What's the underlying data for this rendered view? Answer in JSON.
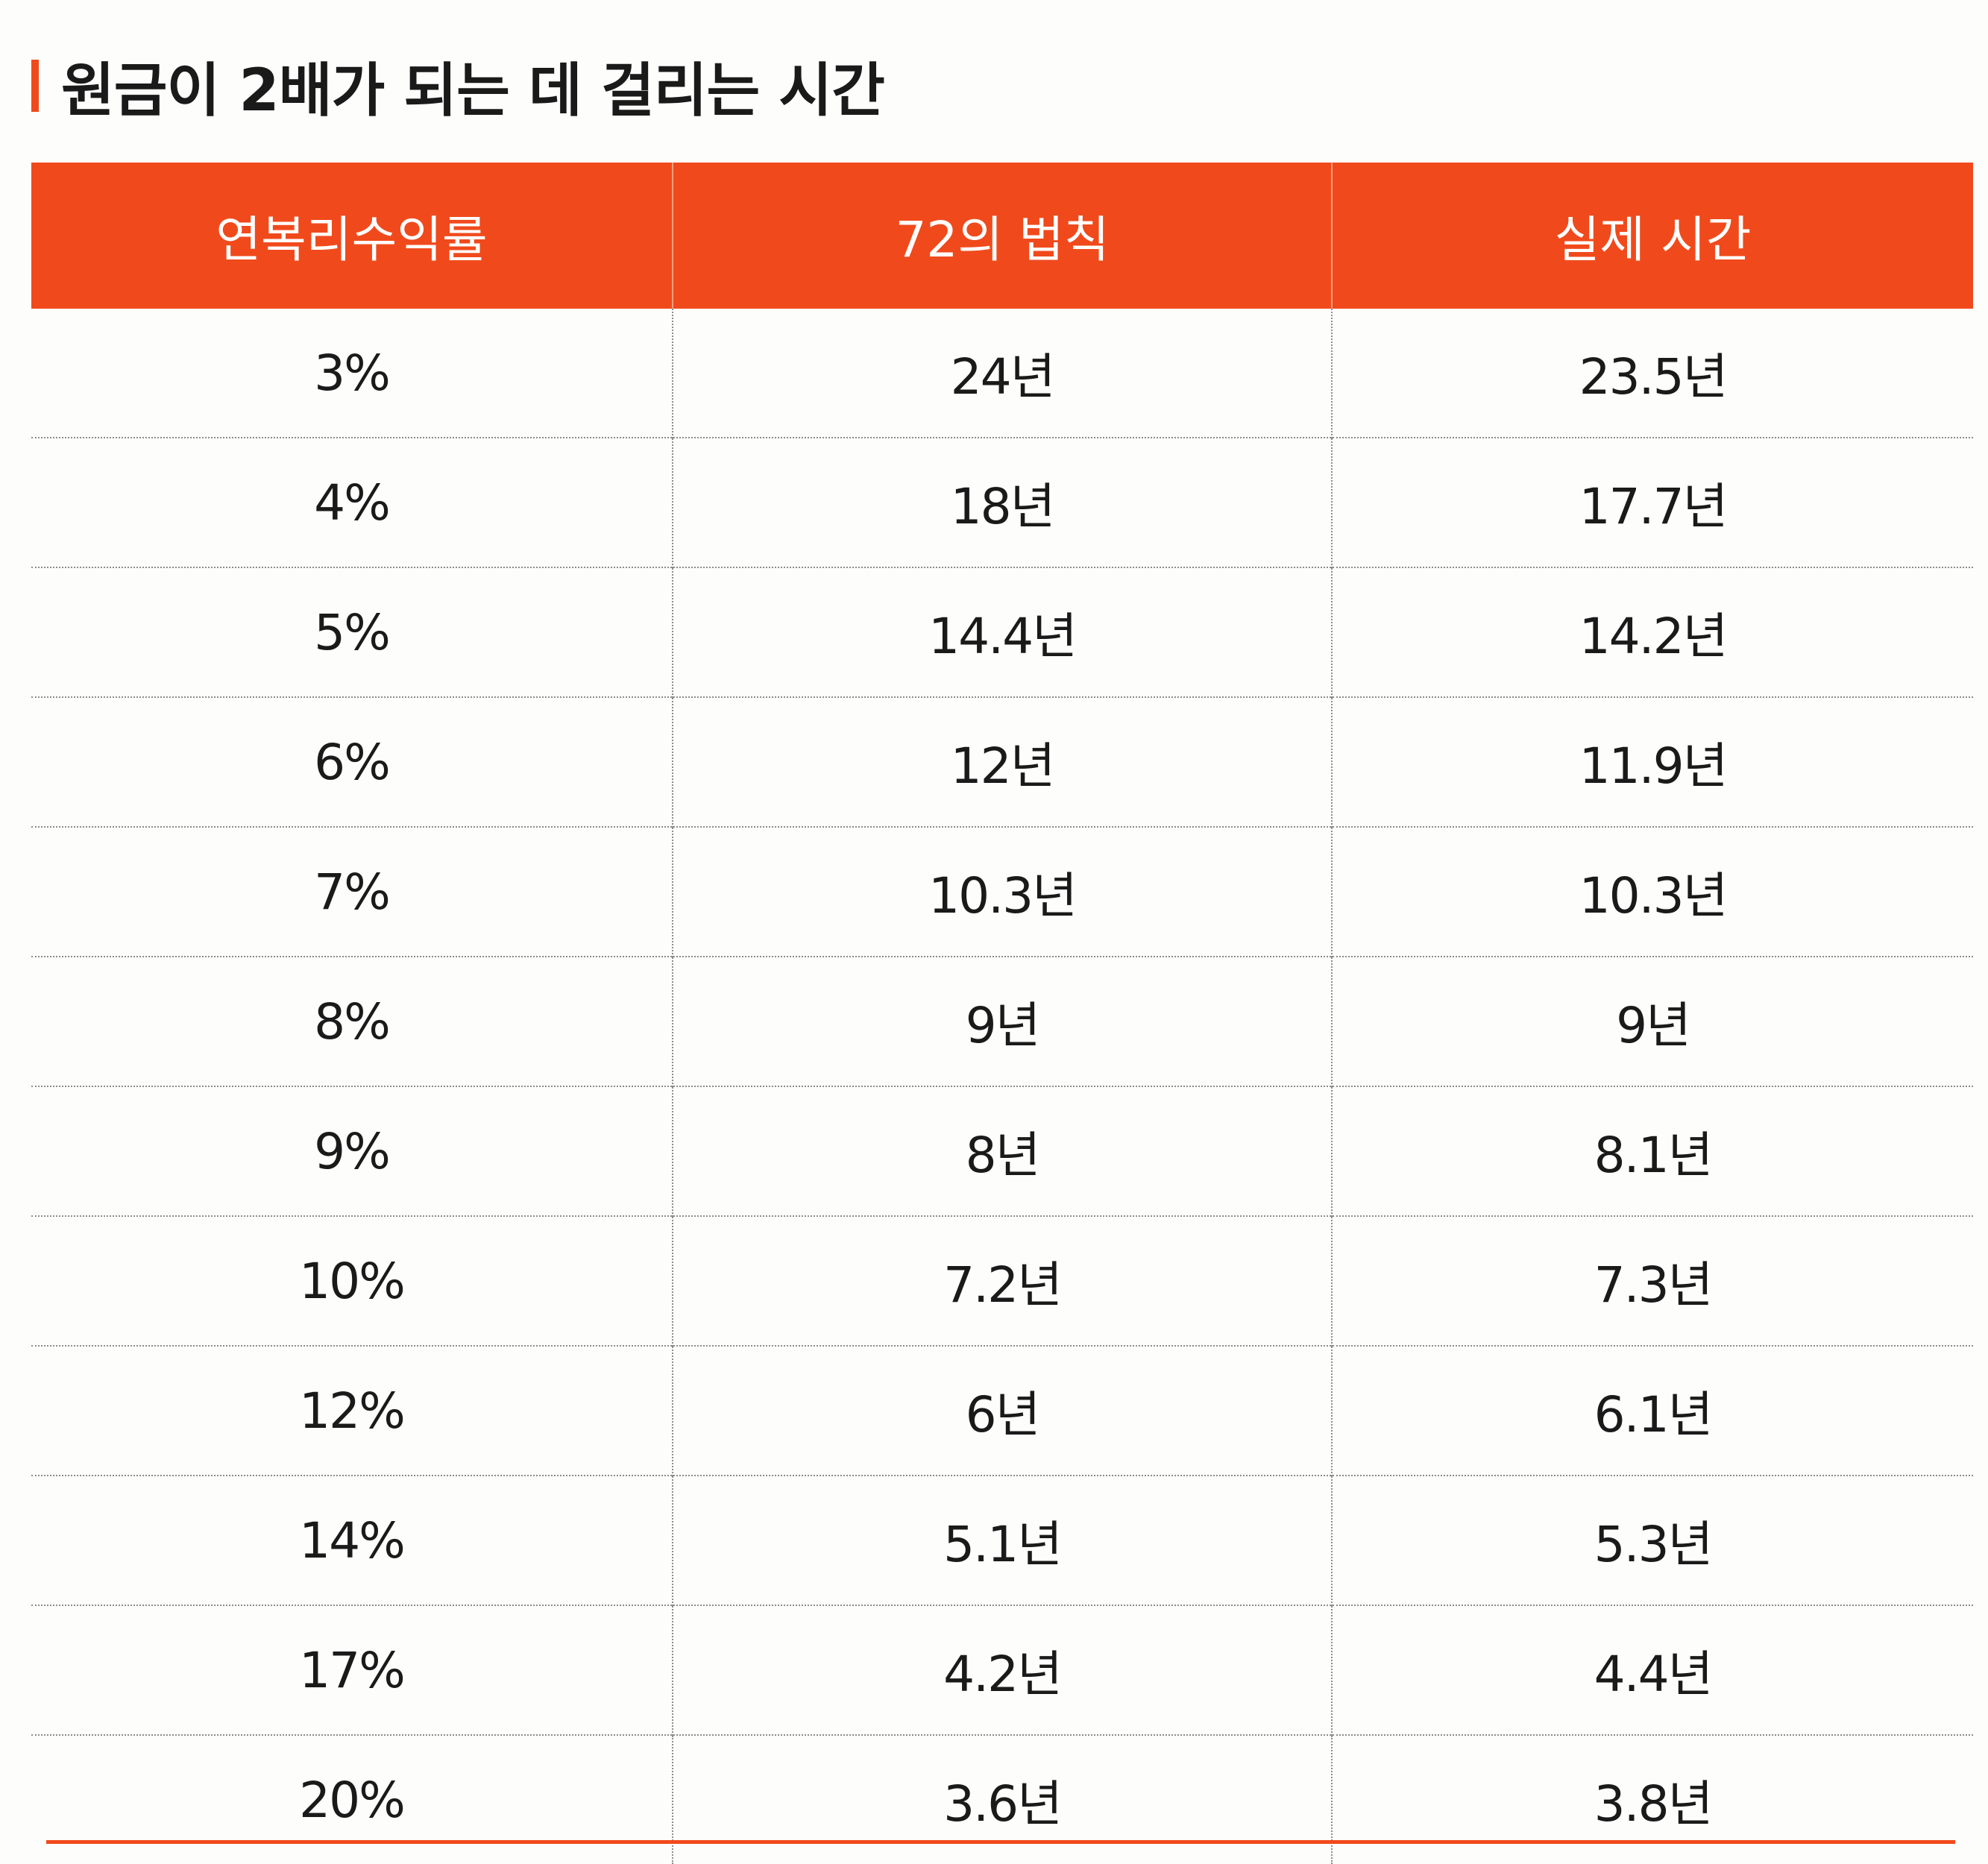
{
  "title": "원금이 2배가 되는 데 걸리는 시간",
  "table": {
    "headers": [
      "연복리수익률",
      "72의 법칙",
      "실제 시간"
    ],
    "rows": [
      [
        "3%",
        "24년",
        "23.5년"
      ],
      [
        "4%",
        "18년",
        "17.7년"
      ],
      [
        "5%",
        "14.4년",
        "14.2년"
      ],
      [
        "6%",
        "12년",
        "11.9년"
      ],
      [
        "7%",
        "10.3년",
        "10.3년"
      ],
      [
        "8%",
        "9년",
        "9년"
      ],
      [
        "9%",
        "8년",
        "8.1년"
      ],
      [
        "10%",
        "7.2년",
        "7.3년"
      ],
      [
        "12%",
        "6년",
        "6.1년"
      ],
      [
        "14%",
        "5.1년",
        "5.3년"
      ],
      [
        "17%",
        "4.2년",
        "4.4년"
      ],
      [
        "20%",
        "3.6년",
        "3.8년"
      ]
    ]
  },
  "colors": {
    "accent": "#f04a1c",
    "header_text": "#ffffff",
    "body_text": "#1a1a1a",
    "rule": "#8c8c8c"
  }
}
